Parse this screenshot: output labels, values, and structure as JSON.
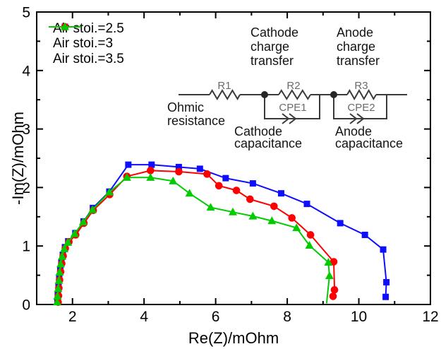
{
  "figure": {
    "background": "#ffffff"
  },
  "chart_data": {
    "type": "line",
    "title": "",
    "xlabel": "Re(Z)/mOhm",
    "ylabel": "-Im(Z)/mOhm",
    "xlim": [
      1,
      12
    ],
    "ylim": [
      0,
      5
    ],
    "xticks_major": [
      2,
      4,
      6,
      8,
      10,
      12
    ],
    "xticks_minor": [
      3,
      5,
      7,
      9,
      11
    ],
    "yticks_major": [
      0,
      1,
      2,
      3,
      4,
      5
    ],
    "yticks_minor": [
      0.5,
      1.5,
      2.5,
      3.5,
      4.5
    ],
    "grid": false,
    "legend_position": "top-left",
    "axis_color": "#000000",
    "series": [
      {
        "name": "Air stoi.=2.5",
        "color": "#0d0dff",
        "marker": "square",
        "points": [
          [
            1.58,
            0.05
          ],
          [
            1.59,
            0.17
          ],
          [
            1.61,
            0.3
          ],
          [
            1.63,
            0.44
          ],
          [
            1.66,
            0.58
          ],
          [
            1.69,
            0.72
          ],
          [
            1.73,
            0.85
          ],
          [
            1.79,
            0.98
          ],
          [
            1.88,
            1.08
          ],
          [
            2.08,
            1.22
          ],
          [
            2.31,
            1.42
          ],
          [
            2.57,
            1.65
          ],
          [
            3.03,
            1.93
          ],
          [
            3.56,
            2.39
          ],
          [
            4.21,
            2.39
          ],
          [
            4.97,
            2.35
          ],
          [
            5.56,
            2.32
          ],
          [
            6.28,
            2.16
          ],
          [
            7.04,
            2.07
          ],
          [
            7.83,
            1.9
          ],
          [
            8.55,
            1.72
          ],
          [
            9.48,
            1.39
          ],
          [
            10.17,
            1.19
          ],
          [
            10.68,
            0.94
          ],
          [
            10.77,
            0.38
          ],
          [
            10.75,
            0.13
          ]
        ],
        "tail": []
      },
      {
        "name": "Air stoi.=3",
        "color": "#ff0000",
        "marker": "circle",
        "points": [
          [
            1.6,
            0.04
          ],
          [
            1.61,
            0.15
          ],
          [
            1.62,
            0.28
          ],
          [
            1.64,
            0.42
          ],
          [
            1.67,
            0.56
          ],
          [
            1.7,
            0.7
          ],
          [
            1.74,
            0.83
          ],
          [
            1.8,
            0.96
          ],
          [
            1.9,
            1.07
          ],
          [
            2.09,
            1.19
          ],
          [
            2.32,
            1.39
          ],
          [
            2.58,
            1.61
          ],
          [
            3.04,
            1.88
          ],
          [
            3.52,
            2.19
          ],
          [
            4.18,
            2.29
          ],
          [
            4.97,
            2.27
          ],
          [
            5.76,
            2.23
          ],
          [
            6.09,
            2.03
          ],
          [
            6.58,
            1.95
          ],
          [
            6.96,
            1.8
          ],
          [
            7.63,
            1.68
          ],
          [
            8.13,
            1.48
          ],
          [
            8.65,
            1.19
          ],
          [
            9.3,
            0.73
          ],
          [
            9.32,
            0.25
          ],
          [
            9.28,
            0.14
          ]
        ],
        "tail": []
      },
      {
        "name": "Air stoi.=3.5",
        "color": "#00cc00",
        "marker": "triangle",
        "points": [
          [
            1.57,
            0.04
          ],
          [
            1.58,
            0.14
          ],
          [
            1.6,
            0.27
          ],
          [
            1.62,
            0.41
          ],
          [
            1.64,
            0.55
          ],
          [
            1.67,
            0.69
          ],
          [
            1.71,
            0.82
          ],
          [
            1.77,
            0.95
          ],
          [
            1.87,
            1.06
          ],
          [
            2.06,
            1.21
          ],
          [
            2.3,
            1.41
          ],
          [
            2.56,
            1.62
          ],
          [
            3.03,
            1.92
          ],
          [
            3.52,
            2.17
          ],
          [
            4.18,
            2.17
          ],
          [
            4.81,
            2.11
          ],
          [
            5.27,
            1.9
          ],
          [
            5.86,
            1.66
          ],
          [
            6.48,
            1.58
          ],
          [
            7.04,
            1.51
          ],
          [
            7.57,
            1.43
          ],
          [
            8.26,
            1.31
          ],
          [
            8.62,
            1.01
          ],
          [
            9.15,
            0.72
          ],
          [
            9.18,
            0.49
          ]
        ],
        "tail": [
          [
            9.1,
            0.02
          ]
        ]
      }
    ]
  },
  "circuit": {
    "labels": {
      "r1": "R1",
      "r2": "R2",
      "r3": "R3",
      "cpe1": "CPE1",
      "cpe2": "CPE2"
    },
    "annotations": {
      "cathode_ct": [
        "Cathode",
        "charge",
        "transfer"
      ],
      "anode_ct": [
        "Anode",
        "charge",
        "transfer"
      ],
      "ohmic": [
        "Ohmic",
        "resistance"
      ],
      "cathode_cap": [
        "Cathode",
        "capacitance"
      ],
      "anode_cap": [
        "Anode",
        "capacitance"
      ]
    }
  }
}
